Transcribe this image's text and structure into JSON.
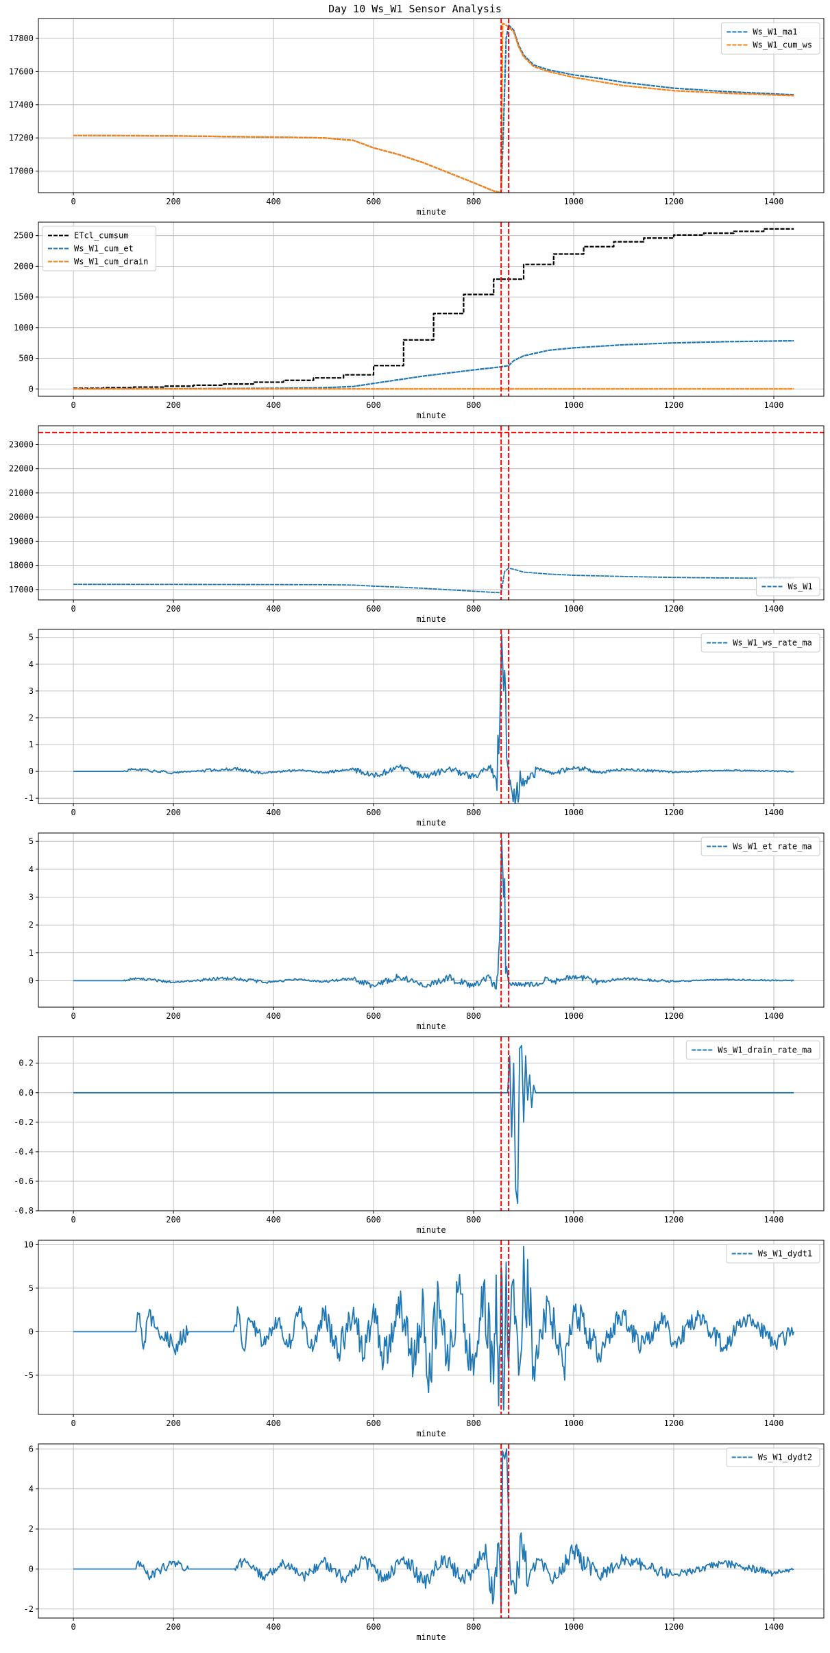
{
  "figure": {
    "title": "Day 10 Ws_W1 Sensor Analysis"
  },
  "colors": {
    "blue": "#1f77b4",
    "orange": "#ff7f0e",
    "black": "#000000",
    "red": "#ff0000",
    "grid": "#b0b0b0"
  },
  "chart_data": [
    {
      "type": "line",
      "xlabel": "minute",
      "xlim": [
        -70,
        1500
      ],
      "ylim": [
        16870,
        17920
      ],
      "xticks": [
        0,
        200,
        400,
        600,
        800,
        1000,
        1200,
        1400
      ],
      "yticks": [
        17000,
        17200,
        17400,
        17600,
        17800
      ],
      "legend": "top-right",
      "vlines": [
        855,
        870
      ],
      "grid": true,
      "series": [
        {
          "name": "Ws_W1_ma1",
          "color": "#1f77b4",
          "x": [
            0,
            200,
            400,
            500,
            560,
            600,
            650,
            700,
            750,
            800,
            840,
            855,
            860,
            865,
            870,
            880,
            890,
            900,
            920,
            950,
            1000,
            1050,
            1100,
            1200,
            1300,
            1440
          ],
          "y": [
            17215,
            17212,
            17205,
            17200,
            17185,
            17140,
            17100,
            17050,
            16990,
            16930,
            16880,
            16870,
            17300,
            17800,
            17880,
            17850,
            17760,
            17700,
            17640,
            17610,
            17580,
            17560,
            17535,
            17500,
            17480,
            17460
          ]
        },
        {
          "name": "Ws_W1_cum_ws",
          "color": "#ff7f0e",
          "x": [
            0,
            200,
            400,
            500,
            560,
            600,
            650,
            700,
            750,
            800,
            840,
            855,
            858,
            862,
            870,
            880,
            890,
            900,
            920,
            950,
            1000,
            1050,
            1100,
            1200,
            1300,
            1440
          ],
          "y": [
            17215,
            17212,
            17205,
            17200,
            17185,
            17140,
            17100,
            17050,
            16990,
            16930,
            16880,
            16870,
            17890,
            17885,
            17870,
            17840,
            17750,
            17690,
            17630,
            17600,
            17565,
            17540,
            17515,
            17485,
            17470,
            17455
          ]
        }
      ]
    },
    {
      "type": "line",
      "xlabel": "minute",
      "xlim": [
        -70,
        1500
      ],
      "ylim": [
        -120,
        2720
      ],
      "xticks": [
        0,
        200,
        400,
        600,
        800,
        1000,
        1200,
        1400
      ],
      "yticks": [
        0,
        500,
        1000,
        1500,
        2000,
        2500
      ],
      "legend": "top-left",
      "vlines": [
        855,
        870
      ],
      "grid": true,
      "series": [
        {
          "name": "ETcl_cumsum",
          "color": "#000000",
          "step": true,
          "x": [
            0,
            60,
            120,
            180,
            240,
            300,
            360,
            420,
            480,
            540,
            600,
            660,
            720,
            780,
            840,
            900,
            960,
            1020,
            1080,
            1140,
            1200,
            1260,
            1320,
            1380,
            1440
          ],
          "y": [
            10,
            20,
            30,
            45,
            60,
            80,
            110,
            140,
            180,
            230,
            380,
            800,
            1230,
            1540,
            1790,
            2030,
            2200,
            2320,
            2400,
            2460,
            2510,
            2540,
            2570,
            2610,
            2610
          ]
        },
        {
          "name": "Ws_W1_cum_et",
          "color": "#1f77b4",
          "x": [
            0,
            200,
            400,
            500,
            560,
            600,
            650,
            700,
            750,
            800,
            850,
            870,
            880,
            900,
            950,
            1000,
            1100,
            1200,
            1300,
            1440
          ],
          "y": [
            0,
            3,
            10,
            20,
            40,
            90,
            150,
            210,
            260,
            310,
            355,
            380,
            460,
            540,
            630,
            670,
            720,
            750,
            770,
            785
          ]
        },
        {
          "name": "Ws_W1_cum_drain",
          "color": "#ff7f0e",
          "x": [
            0,
            1440
          ],
          "y": [
            0,
            0
          ]
        }
      ]
    },
    {
      "type": "line",
      "xlabel": "minute",
      "xlim": [
        -70,
        1500
      ],
      "ylim": [
        16570,
        23780
      ],
      "xticks": [
        0,
        200,
        400,
        600,
        800,
        1000,
        1200,
        1400
      ],
      "yticks": [
        17000,
        18000,
        19000,
        20000,
        21000,
        22000,
        23000
      ],
      "legend": "bottom-right",
      "vlines": [
        855,
        870
      ],
      "hlines": [
        23500
      ],
      "grid": true,
      "series": [
        {
          "name": "Ws_W1",
          "color": "#1f77b4",
          "x": [
            0,
            200,
            400,
            500,
            560,
            600,
            650,
            700,
            750,
            800,
            840,
            855,
            862,
            870,
            880,
            900,
            950,
            1000,
            1100,
            1200,
            1300,
            1440
          ],
          "y": [
            17215,
            17212,
            17205,
            17200,
            17185,
            17140,
            17100,
            17050,
            16990,
            16930,
            16880,
            16870,
            17750,
            17880,
            17840,
            17720,
            17640,
            17590,
            17540,
            17500,
            17480,
            17460
          ]
        }
      ]
    },
    {
      "type": "line",
      "xlabel": "minute",
      "xlim": [
        -70,
        1500
      ],
      "ylim": [
        -1.2,
        5.3
      ],
      "xticks": [
        0,
        200,
        400,
        600,
        800,
        1000,
        1200,
        1400
      ],
      "yticks": [
        -1,
        0,
        1,
        2,
        3,
        4,
        5
      ],
      "legend": "top-right",
      "vlines": [
        855,
        870
      ],
      "grid": true,
      "series": [
        {
          "name": "Ws_W1_ws_rate_ma",
          "color": "#1f77b4",
          "x": [
            0,
            100,
            120,
            200,
            250,
            320,
            380,
            450,
            500,
            560,
            600,
            650,
            700,
            750,
            800,
            830,
            845,
            852,
            856,
            860,
            866,
            870,
            875,
            885,
            895,
            910,
            930,
            960,
            1000,
            1050,
            1100,
            1200,
            1300,
            1440
          ],
          "y": [
            0,
            0,
            0.08,
            -0.05,
            0.02,
            0.1,
            -0.06,
            0.05,
            -0.04,
            0.08,
            -0.18,
            0.15,
            -0.2,
            0.1,
            -0.22,
            0.2,
            -0.3,
            1.5,
            5.1,
            3.0,
            0.5,
            0,
            -0.6,
            -0.9,
            -0.4,
            -0.3,
            0.1,
            -0.1,
            0.18,
            -0.05,
            0.08,
            -0.03,
            0.04,
            0
          ]
        }
      ]
    },
    {
      "type": "line",
      "xlabel": "minute",
      "xlim": [
        -70,
        1500
      ],
      "ylim": [
        -0.95,
        5.3
      ],
      "xticks": [
        0,
        200,
        400,
        600,
        800,
        1000,
        1200,
        1400
      ],
      "yticks": [
        0,
        1,
        2,
        3,
        4,
        5
      ],
      "legend": "top-right",
      "vlines": [
        855,
        870
      ],
      "grid": true,
      "series": [
        {
          "name": "Ws_W1_et_rate_ma",
          "color": "#1f77b4",
          "x": [
            0,
            100,
            120,
            200,
            250,
            320,
            380,
            450,
            500,
            560,
            600,
            650,
            700,
            750,
            800,
            830,
            845,
            852,
            856,
            860,
            866,
            870,
            900,
            930,
            945,
            960,
            1000,
            1050,
            1100,
            1200,
            1300,
            1440
          ],
          "y": [
            0,
            0,
            0.08,
            -0.05,
            0.02,
            0.1,
            -0.06,
            0.05,
            -0.04,
            0.08,
            -0.18,
            0.15,
            -0.2,
            0.1,
            -0.22,
            0.2,
            -0.3,
            1.5,
            5.1,
            3.0,
            0.5,
            -0.1,
            -0.12,
            -0.15,
            0.1,
            -0.05,
            0.18,
            -0.05,
            0.08,
            -0.03,
            0.04,
            0
          ]
        }
      ]
    },
    {
      "type": "line",
      "xlabel": "minute",
      "xlim": [
        -70,
        1500
      ],
      "ylim": [
        -0.8,
        0.38
      ],
      "xticks": [
        0,
        200,
        400,
        600,
        800,
        1000,
        1200,
        1400
      ],
      "yticks": [
        -0.8,
        -0.6,
        -0.4,
        -0.2,
        0.0,
        0.2
      ],
      "ytick_format": "fixed1",
      "legend": "top-right",
      "vlines": [
        855,
        870
      ],
      "grid": true,
      "series": [
        {
          "name": "Ws_W1_drain_rate_ma",
          "color": "#1f77b4",
          "x": [
            0,
            868,
            872,
            876,
            880,
            884,
            888,
            892,
            896,
            900,
            904,
            908,
            912,
            916,
            920,
            924,
            928,
            1440
          ],
          "y": [
            0,
            0,
            0.25,
            -0.3,
            0.2,
            -0.65,
            -0.75,
            0.3,
            0.32,
            -0.2,
            0.25,
            -0.05,
            0.12,
            -0.1,
            0.05,
            0,
            0,
            0
          ]
        }
      ]
    },
    {
      "type": "line",
      "xlabel": "minute",
      "xlim": [
        -70,
        1500
      ],
      "ylim": [
        -9.5,
        10.5
      ],
      "xticks": [
        0,
        200,
        400,
        600,
        800,
        1000,
        1200,
        1400
      ],
      "yticks": [
        -5,
        0,
        5,
        10
      ],
      "legend": "top-right",
      "vlines": [
        855,
        870
      ],
      "grid": true,
      "series": [
        {
          "name": "Ws_W1_dydt1",
          "color": "#1f77b4",
          "x": [
            0,
            125,
            130,
            140,
            150,
            200,
            230,
            320,
            330,
            340,
            350,
            380,
            410,
            430,
            450,
            480,
            500,
            530,
            560,
            580,
            600,
            620,
            650,
            680,
            700,
            710,
            730,
            750,
            770,
            800,
            820,
            840,
            845,
            850,
            855,
            860,
            865,
            870,
            880,
            890,
            900,
            920,
            950,
            980,
            1000,
            1050,
            1100,
            1130,
            1180,
            1200,
            1250,
            1300,
            1350,
            1400,
            1440
          ],
          "y": [
            0,
            0,
            2,
            -2,
            1.8,
            -1.8,
            0,
            0,
            2.2,
            -2,
            1.6,
            -1.5,
            1.5,
            -1.7,
            2.3,
            -1.8,
            2.5,
            -2.5,
            2.8,
            -3,
            3.2,
            -3.5,
            4,
            -4,
            3.5,
            -7,
            4.5,
            -4.5,
            5,
            -5,
            5.5,
            -6,
            6.5,
            -8.5,
            7.5,
            -9,
            8,
            -4,
            6,
            -5,
            9.8,
            -4,
            3.5,
            -4,
            3,
            -2.5,
            2.5,
            -2,
            1.8,
            -1.5,
            1.8,
            -1.8,
            1.8,
            -1.5,
            0
          ]
        }
      ]
    },
    {
      "type": "line",
      "xlabel": "minute",
      "xlim": [
        -70,
        1500
      ],
      "ylim": [
        -2.45,
        6.25
      ],
      "xticks": [
        0,
        200,
        400,
        600,
        800,
        1000,
        1200,
        1400
      ],
      "yticks": [
        -2,
        0,
        2,
        4,
        6
      ],
      "legend": "top-right",
      "vlines": [
        855,
        870
      ],
      "grid": true,
      "series": [
        {
          "name": "Ws_W1_dydt2",
          "color": "#1f77b4",
          "x": [
            0,
            125,
            130,
            150,
            200,
            230,
            320,
            340,
            380,
            420,
            460,
            500,
            540,
            580,
            620,
            660,
            700,
            740,
            780,
            820,
            840,
            850,
            855,
            858,
            862,
            866,
            870,
            875,
            885,
            895,
            910,
            930,
            960,
            1000,
            1050,
            1100,
            1200,
            1300,
            1400,
            1440
          ],
          "y": [
            0,
            0,
            0.4,
            -0.4,
            0.35,
            0,
            0,
            0.4,
            -0.4,
            0.3,
            -0.4,
            0.4,
            -0.5,
            0.5,
            -0.6,
            0.6,
            -0.7,
            0.6,
            -0.6,
            0.8,
            -1.5,
            1.3,
            -2.2,
            5.9,
            5.5,
            6.0,
            2.5,
            -0.8,
            -1.2,
            1.8,
            -0.6,
            0.5,
            -0.5,
            0.9,
            -0.4,
            0.5,
            -0.3,
            0.3,
            -0.2,
            0
          ]
        }
      ]
    }
  ]
}
